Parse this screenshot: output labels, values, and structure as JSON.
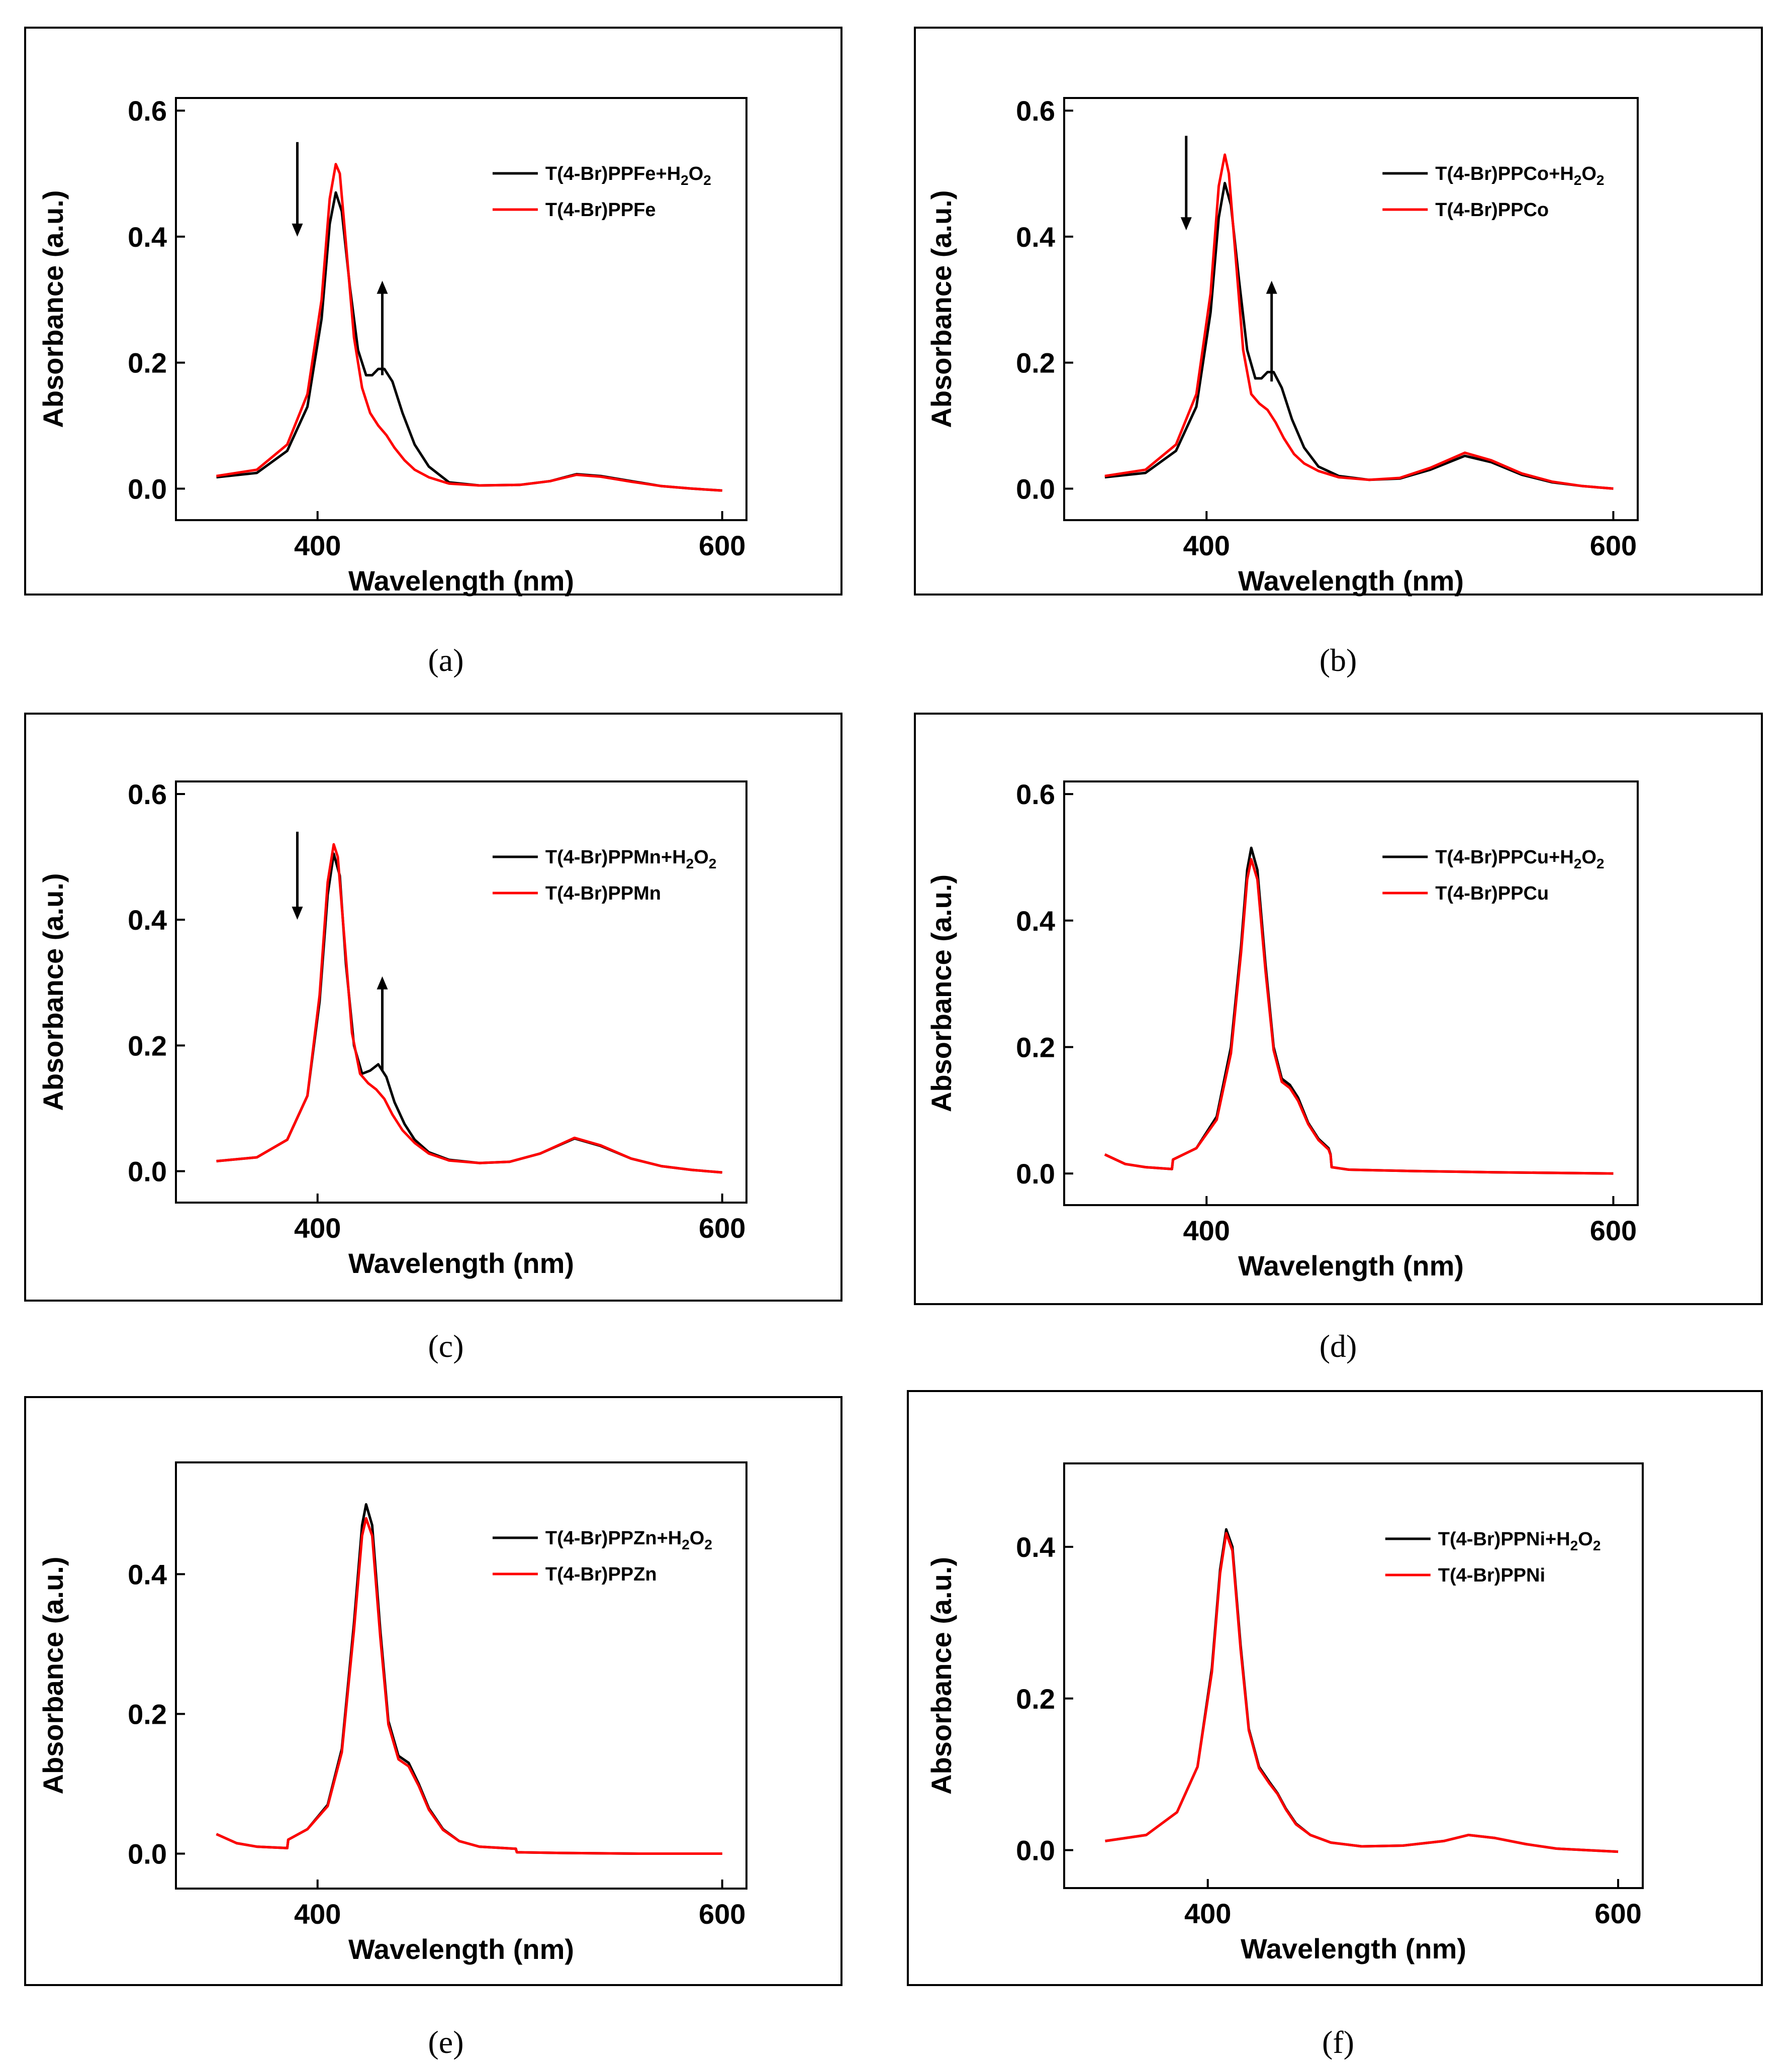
{
  "figure": {
    "colors": {
      "with_h2o2": "#000000",
      "without_h2o2": "#ff0000",
      "frame": "#000000"
    }
  },
  "chart_data": [
    {
      "panel": "(a)",
      "type": "line",
      "xlabel": "Wavelength (nm)",
      "ylabel": "Absorbance (a.u.)",
      "xlim": [
        330,
        612
      ],
      "ylim": [
        -0.05,
        0.62
      ],
      "xticks": [
        400,
        600
      ],
      "yticks": [
        0.0,
        0.2,
        0.4,
        0.6
      ],
      "ytick_labels": [
        "0.0",
        "0.2",
        "0.4",
        "0.6"
      ],
      "legend_position": "top-right",
      "series": [
        {
          "name": "T(4-Br)PPFe+H2O2",
          "legend": {
            "pre": "T(4-Br)PPFe+H",
            "sub1": "2",
            "mid": "O",
            "sub2": "2"
          },
          "color": "#000000",
          "x": [
            350,
            370,
            385,
            395,
            402,
            406,
            409,
            412,
            416,
            420,
            424,
            427,
            430,
            433,
            437,
            442,
            448,
            455,
            465,
            480,
            500,
            515,
            528,
            540,
            555,
            570,
            585,
            600
          ],
          "y": [
            0.018,
            0.025,
            0.06,
            0.13,
            0.27,
            0.42,
            0.47,
            0.44,
            0.32,
            0.22,
            0.18,
            0.18,
            0.19,
            0.19,
            0.17,
            0.12,
            0.07,
            0.035,
            0.01,
            0.005,
            0.006,
            0.012,
            0.023,
            0.02,
            0.012,
            0.004,
            0.0,
            -0.003
          ]
        },
        {
          "name": "T(4-Br)PPFe",
          "legend": {
            "pre": "T(4-Br)PPFe"
          },
          "color": "#ff0000",
          "x": [
            350,
            370,
            385,
            395,
            402,
            406,
            409,
            411,
            414,
            418,
            422,
            426,
            430,
            434,
            438,
            443,
            448,
            455,
            465,
            480,
            500,
            515,
            528,
            540,
            555,
            570,
            585,
            600
          ],
          "y": [
            0.02,
            0.03,
            0.07,
            0.15,
            0.3,
            0.46,
            0.515,
            0.5,
            0.39,
            0.24,
            0.16,
            0.12,
            0.1,
            0.085,
            0.065,
            0.045,
            0.03,
            0.018,
            0.008,
            0.005,
            0.006,
            0.012,
            0.022,
            0.019,
            0.011,
            0.004,
            0.0,
            -0.003
          ]
        }
      ],
      "annotations": [
        {
          "type": "arrow",
          "direction": "down",
          "x": 390,
          "y_from": 0.55,
          "y_to": 0.4
        },
        {
          "type": "arrow",
          "direction": "up",
          "x": 432,
          "y_from": 0.18,
          "y_to": 0.33
        }
      ]
    },
    {
      "panel": "(b)",
      "type": "line",
      "xlabel": "Wavelength (nm)",
      "ylabel": "Absorbance (a.u.)",
      "xlim": [
        330,
        612
      ],
      "ylim": [
        -0.05,
        0.62
      ],
      "xticks": [
        400,
        600
      ],
      "yticks": [
        0.0,
        0.2,
        0.4,
        0.6
      ],
      "ytick_labels": [
        "0.0",
        "0.2",
        "0.4",
        "0.6"
      ],
      "legend_position": "top-right",
      "series": [
        {
          "name": "T(4-Br)PPCo+H2O2",
          "legend": {
            "pre": "T(4-Br)PPCo+H",
            "sub1": "2",
            "mid": "O",
            "sub2": "2"
          },
          "color": "#000000",
          "x": [
            350,
            370,
            385,
            395,
            402,
            406,
            409,
            412,
            416,
            420,
            424,
            427,
            430,
            433,
            437,
            442,
            448,
            455,
            465,
            480,
            495,
            510,
            527,
            540,
            555,
            570,
            585,
            600
          ],
          "y": [
            0.018,
            0.025,
            0.06,
            0.13,
            0.28,
            0.43,
            0.485,
            0.45,
            0.33,
            0.22,
            0.175,
            0.175,
            0.185,
            0.185,
            0.16,
            0.11,
            0.065,
            0.035,
            0.02,
            0.014,
            0.016,
            0.03,
            0.052,
            0.042,
            0.022,
            0.01,
            0.004,
            0.0
          ]
        },
        {
          "name": "T(4-Br)PPCo",
          "legend": {
            "pre": "T(4-Br)PPCo"
          },
          "color": "#ff0000",
          "x": [
            350,
            370,
            385,
            395,
            402,
            406,
            409,
            411,
            414,
            418,
            422,
            426,
            430,
            434,
            438,
            443,
            448,
            455,
            465,
            480,
            495,
            510,
            527,
            540,
            555,
            570,
            585,
            600
          ],
          "y": [
            0.02,
            0.03,
            0.07,
            0.15,
            0.31,
            0.48,
            0.53,
            0.5,
            0.38,
            0.22,
            0.15,
            0.135,
            0.125,
            0.105,
            0.08,
            0.055,
            0.04,
            0.028,
            0.018,
            0.014,
            0.017,
            0.033,
            0.057,
            0.045,
            0.024,
            0.011,
            0.004,
            0.0
          ]
        }
      ],
      "annotations": [
        {
          "type": "arrow",
          "direction": "down",
          "x": 390,
          "y_from": 0.56,
          "y_to": 0.41
        },
        {
          "type": "arrow",
          "direction": "up",
          "x": 432,
          "y_from": 0.17,
          "y_to": 0.33
        }
      ]
    },
    {
      "panel": "(c)",
      "type": "line",
      "xlabel": "Wavelength (nm)",
      "ylabel": "Absorbance (a.u.)",
      "xlim": [
        330,
        612
      ],
      "ylim": [
        -0.05,
        0.62
      ],
      "xticks": [
        400,
        600
      ],
      "yticks": [
        0.0,
        0.2,
        0.4,
        0.6
      ],
      "ytick_labels": [
        "0.0",
        "0.2",
        "0.4",
        "0.6"
      ],
      "legend_position": "top-right",
      "series": [
        {
          "name": "T(4-Br)PPMn+H2O2",
          "legend": {
            "pre": "T(4-Br)PPMn+H",
            "sub1": "2",
            "mid": "O",
            "sub2": "2"
          },
          "color": "#000000",
          "x": [
            350,
            370,
            385,
            395,
            401,
            405,
            408,
            411,
            414,
            418,
            422,
            426,
            430,
            434,
            438,
            443,
            448,
            455,
            465,
            480,
            495,
            510,
            527,
            540,
            555,
            570,
            585,
            600
          ],
          "y": [
            0.016,
            0.022,
            0.05,
            0.12,
            0.27,
            0.44,
            0.505,
            0.47,
            0.33,
            0.2,
            0.155,
            0.16,
            0.17,
            0.15,
            0.11,
            0.075,
            0.05,
            0.03,
            0.018,
            0.013,
            0.015,
            0.028,
            0.052,
            0.04,
            0.02,
            0.008,
            0.002,
            -0.002
          ]
        },
        {
          "name": "T(4-Br)PPMn",
          "legend": {
            "pre": "T(4-Br)PPMn"
          },
          "color": "#ff0000",
          "x": [
            350,
            370,
            385,
            395,
            401,
            405,
            408,
            410,
            413,
            417,
            421,
            425,
            429,
            433,
            437,
            442,
            448,
            455,
            465,
            480,
            495,
            510,
            527,
            540,
            555,
            570,
            585,
            600
          ],
          "y": [
            0.016,
            0.022,
            0.05,
            0.12,
            0.28,
            0.46,
            0.52,
            0.5,
            0.38,
            0.22,
            0.155,
            0.14,
            0.13,
            0.115,
            0.09,
            0.065,
            0.045,
            0.028,
            0.017,
            0.013,
            0.015,
            0.028,
            0.053,
            0.041,
            0.02,
            0.008,
            0.002,
            -0.002
          ]
        }
      ],
      "annotations": [
        {
          "type": "arrow",
          "direction": "down",
          "x": 390,
          "y_from": 0.54,
          "y_to": 0.4
        },
        {
          "type": "arrow",
          "direction": "up",
          "x": 432,
          "y_from": 0.16,
          "y_to": 0.31
        }
      ]
    },
    {
      "panel": "(d)",
      "type": "line",
      "xlabel": "Wavelength (nm)",
      "ylabel": "Absorbance (a.u.)",
      "xlim": [
        330,
        612
      ],
      "ylim": [
        -0.05,
        0.62
      ],
      "xticks": [
        400,
        600
      ],
      "yticks": [
        0.0,
        0.2,
        0.4,
        0.6
      ],
      "ytick_labels": [
        "0.0",
        "0.2",
        "0.4",
        "0.6"
      ],
      "legend_position": "top-right",
      "series": [
        {
          "name": "T(4-Br)PPCu+H2O2",
          "legend": {
            "pre": "T(4-Br)PPCu+H",
            "sub1": "2",
            "mid": "O",
            "sub2": "2"
          },
          "color": "#000000",
          "x": [
            350,
            360,
            370,
            383,
            383.5,
            395,
            405,
            412,
            417,
            420,
            422,
            425,
            429,
            433,
            437,
            441,
            445,
            450,
            455,
            460,
            461,
            461.5,
            470,
            500,
            540,
            600
          ],
          "y": [
            0.03,
            0.015,
            0.01,
            0.007,
            0.022,
            0.04,
            0.09,
            0.2,
            0.36,
            0.48,
            0.515,
            0.48,
            0.33,
            0.2,
            0.15,
            0.14,
            0.12,
            0.08,
            0.055,
            0.04,
            0.03,
            0.01,
            0.006,
            0.004,
            0.002,
            0.0
          ]
        },
        {
          "name": "T(4-Br)PPCu",
          "legend": {
            "pre": "T(4-Br)PPCu"
          },
          "color": "#ff0000",
          "x": [
            350,
            360,
            370,
            383,
            383.5,
            395,
            405,
            412,
            417,
            420,
            422,
            425,
            429,
            433,
            437,
            441,
            445,
            450,
            455,
            460,
            461,
            461.5,
            470,
            500,
            540,
            600
          ],
          "y": [
            0.03,
            0.015,
            0.01,
            0.007,
            0.022,
            0.04,
            0.085,
            0.19,
            0.35,
            0.465,
            0.497,
            0.465,
            0.32,
            0.195,
            0.145,
            0.135,
            0.115,
            0.078,
            0.053,
            0.038,
            0.029,
            0.01,
            0.006,
            0.004,
            0.002,
            0.0
          ]
        }
      ],
      "annotations": []
    },
    {
      "panel": "(e)",
      "type": "line",
      "xlabel": "Wavelength (nm)",
      "ylabel": "Absorbance (a.u.)",
      "xlim": [
        330,
        612
      ],
      "ylim": [
        -0.05,
        0.56
      ],
      "xticks": [
        400,
        600
      ],
      "yticks": [
        0.0,
        0.2,
        0.4
      ],
      "ytick_labels": [
        "0.0",
        "0.2",
        "0.4"
      ],
      "legend_position": "top-right",
      "series": [
        {
          "name": "T(4-Br)PPZn+H2O2",
          "legend": {
            "pre": "T(4-Br)PPZn+H",
            "sub1": "2",
            "mid": "O",
            "sub2": "2"
          },
          "color": "#000000",
          "x": [
            350,
            360,
            370,
            385,
            385.5,
            395,
            405,
            412,
            418,
            422,
            424,
            427,
            431,
            435,
            440,
            445,
            450,
            455,
            462,
            470,
            480,
            498,
            498.5,
            520,
            560,
            600
          ],
          "y": [
            0.028,
            0.015,
            0.01,
            0.008,
            0.02,
            0.035,
            0.07,
            0.15,
            0.33,
            0.47,
            0.5,
            0.47,
            0.32,
            0.19,
            0.14,
            0.13,
            0.1,
            0.065,
            0.035,
            0.018,
            0.01,
            0.007,
            0.002,
            0.001,
            0.0,
            0.0
          ]
        },
        {
          "name": "T(4-Br)PPZn",
          "legend": {
            "pre": "T(4-Br)PPZn"
          },
          "color": "#ff0000",
          "x": [
            350,
            360,
            370,
            385,
            385.5,
            395,
            405,
            412,
            418,
            422,
            424,
            427,
            431,
            435,
            440,
            445,
            450,
            455,
            462,
            470,
            480,
            498,
            498.5,
            520,
            560,
            600
          ],
          "y": [
            0.028,
            0.015,
            0.01,
            0.008,
            0.02,
            0.035,
            0.068,
            0.145,
            0.32,
            0.455,
            0.48,
            0.455,
            0.31,
            0.185,
            0.135,
            0.125,
            0.097,
            0.063,
            0.034,
            0.018,
            0.01,
            0.007,
            0.002,
            0.001,
            0.0,
            0.0
          ]
        }
      ],
      "annotations": []
    },
    {
      "panel": "(f)",
      "type": "line",
      "xlabel": "Wavelength (nm)",
      "ylabel": "Absorbance (a.u.)",
      "xlim": [
        330,
        612
      ],
      "ylim": [
        -0.05,
        0.51
      ],
      "xticks": [
        400,
        600
      ],
      "yticks": [
        0.0,
        0.2,
        0.4
      ],
      "ytick_labels": [
        "0.0",
        "0.2",
        "0.4"
      ],
      "legend_position": "top-right",
      "series": [
        {
          "name": "T(4-Br)PPNi+H2O2",
          "legend": {
            "pre": "T(4-Br)PPNi+H",
            "sub1": "2",
            "mid": "O",
            "sub2": "2"
          },
          "color": "#000000",
          "x": [
            350,
            370,
            385,
            395,
            402,
            406,
            409,
            412,
            416,
            420,
            425,
            430,
            434,
            438,
            443,
            450,
            460,
            475,
            495,
            515,
            527,
            540,
            555,
            570,
            585,
            600
          ],
          "y": [
            0.012,
            0.02,
            0.05,
            0.11,
            0.24,
            0.37,
            0.423,
            0.4,
            0.27,
            0.16,
            0.11,
            0.09,
            0.075,
            0.055,
            0.035,
            0.02,
            0.01,
            0.005,
            0.006,
            0.012,
            0.02,
            0.016,
            0.008,
            0.002,
            0.0,
            -0.002
          ]
        },
        {
          "name": "T(4-Br)PPNi",
          "legend": {
            "pre": "T(4-Br)PPNi"
          },
          "color": "#ff0000",
          "x": [
            350,
            370,
            385,
            395,
            402,
            406,
            409,
            412,
            416,
            420,
            425,
            430,
            434,
            438,
            443,
            450,
            460,
            475,
            495,
            515,
            527,
            540,
            555,
            570,
            585,
            600
          ],
          "y": [
            0.012,
            0.02,
            0.05,
            0.11,
            0.235,
            0.365,
            0.418,
            0.395,
            0.265,
            0.158,
            0.108,
            0.088,
            0.074,
            0.054,
            0.034,
            0.02,
            0.01,
            0.005,
            0.006,
            0.012,
            0.02,
            0.016,
            0.008,
            0.002,
            0.0,
            -0.002
          ]
        }
      ],
      "annotations": []
    }
  ]
}
